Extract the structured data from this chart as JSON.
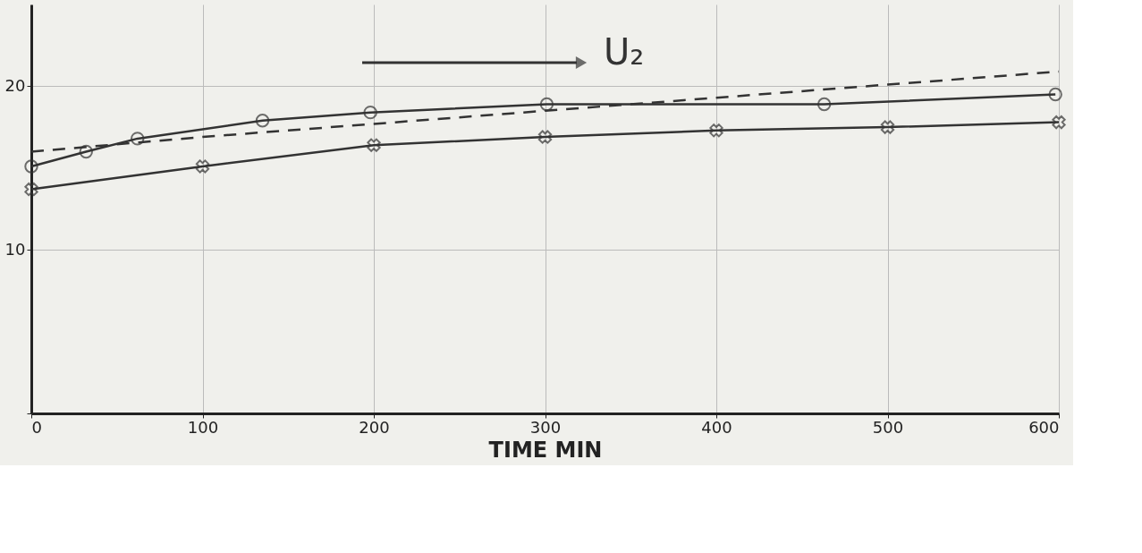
{
  "chart_data": {
    "type": "line",
    "xlabel": "TIME MIN",
    "annotations": [
      "U₂"
    ],
    "xlim": [
      0,
      600
    ],
    "ylim": [
      0,
      25
    ],
    "xticks": [
      0,
      100,
      200,
      300,
      400,
      500,
      600
    ],
    "yticks": [
      {
        "value": 0,
        "label": null
      },
      10,
      20
    ],
    "grid": true,
    "tick_labels": true,
    "series": [
      {
        "color": "#333333",
        "marker": "circle",
        "line_style": "solid",
        "x": [
          0,
          32,
          62,
          135,
          198,
          301,
          463,
          598
        ],
        "values": [
          15.1,
          16.0,
          16.8,
          17.9,
          18.4,
          18.9,
          18.9,
          19.5
        ]
      },
      {
        "color": "#333333",
        "marker": "cross",
        "line_style": "solid",
        "x": [
          0,
          100,
          200,
          300,
          400,
          500,
          600
        ],
        "values": [
          13.7,
          15.1,
          16.4,
          16.9,
          17.3,
          17.5,
          17.8
        ]
      },
      {
        "color": "#333333",
        "marker": "none",
        "line_style": "dashed",
        "x": [
          0,
          100,
          200,
          300,
          400,
          500,
          600
        ],
        "values": [
          16.0,
          16.9,
          17.7,
          18.5,
          19.3,
          20.1,
          20.9
        ]
      }
    ]
  }
}
